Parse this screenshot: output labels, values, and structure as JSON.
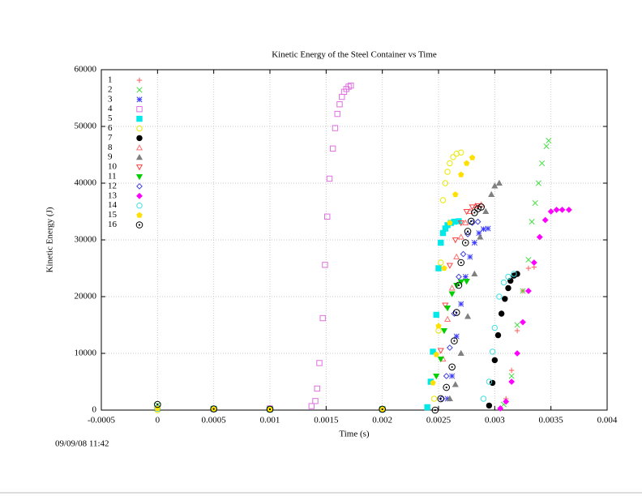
{
  "chart_data": {
    "type": "scatter",
    "title": "Kinetic Energy of the Steel Container vs Time",
    "x_label": "Time (s)",
    "y_label": "Kinetic Energy (J)",
    "timestamp": "09/09/08 11:42",
    "xlim": [
      -0.0005,
      0.004
    ],
    "xticks": [
      -0.0005,
      0,
      0.0005,
      0.001,
      0.0015,
      0.002,
      0.0025,
      0.003,
      0.0035,
      0.004
    ],
    "ylim": [
      0,
      60000
    ],
    "yticks": [
      0,
      10000,
      20000,
      30000,
      40000,
      50000,
      60000
    ],
    "grid": true,
    "legend": "upper-left",
    "series": [
      {
        "name": "1",
        "color": "#ff5a5a",
        "marker": "plus",
        "x": [
          0,
          0.0005,
          0.001,
          0.002,
          0.0031,
          0.00315,
          0.0032,
          0.00325,
          0.0033,
          0.00335
        ],
        "values": [
          300,
          200,
          150,
          150,
          2000,
          7000,
          14000,
          21000,
          25000,
          25200
        ]
      },
      {
        "name": "2",
        "color": "#3ce03c",
        "marker": "cross",
        "x": [
          0,
          0.0005,
          0.001,
          0.002,
          0.00308,
          0.00315,
          0.0032,
          0.00325,
          0.0033,
          0.00333,
          0.00336,
          0.00339,
          0.00342,
          0.00346,
          0.00348
        ],
        "values": [
          900,
          200,
          150,
          150,
          1000,
          6000,
          15000,
          21000,
          26500,
          33200,
          36500,
          40000,
          43500,
          46500,
          47500
        ]
      },
      {
        "name": "3",
        "color": "#3c3cff",
        "marker": "star",
        "x": [
          0,
          0.0005,
          0.001,
          0.002,
          0.00258,
          0.00262,
          0.00266,
          0.0027,
          0.00274,
          0.00278,
          0.00282,
          0.00286,
          0.0029,
          0.00294
        ],
        "values": [
          300,
          200,
          150,
          150,
          2000,
          6000,
          13000,
          18700,
          23500,
          27000,
          29500,
          31200,
          31900,
          32000
        ]
      },
      {
        "name": "4",
        "color": "#e070e0",
        "marker": "square",
        "x": [
          0,
          0.0005,
          0.001,
          0.00137,
          0.001404,
          0.00142,
          0.00144,
          0.00147,
          0.00149,
          0.00151,
          0.00153,
          0.00156,
          0.00158,
          0.0016,
          0.00162,
          0.00164,
          0.00166,
          0.00168,
          0.0017,
          0.00172
        ],
        "values": [
          300,
          200,
          300,
          700,
          1600,
          3800,
          8300,
          16200,
          25600,
          34100,
          40800,
          46100,
          49700,
          52200,
          53900,
          55200,
          56100,
          56600,
          57000,
          57200
        ]
      },
      {
        "name": "5",
        "color": "#00e8e8",
        "marker": "filled-square",
        "x": [
          0,
          0.0005,
          0.001,
          0.002,
          0.0024,
          0.00243,
          0.00245,
          0.00248,
          0.0025,
          0.00252,
          0.00254,
          0.00256,
          0.00258,
          0.00261,
          0.00264,
          0.00268
        ],
        "values": [
          300,
          200,
          150,
          150,
          500,
          5000,
          10300,
          16800,
          25000,
          29500,
          31200,
          32000,
          32600,
          33000,
          33200,
          33300
        ]
      },
      {
        "name": "6",
        "color": "#e8e800",
        "marker": "circle",
        "x": [
          0,
          0.0005,
          0.001,
          0.002,
          0.00246,
          0.0025,
          0.00252,
          0.00254,
          0.00256,
          0.00258,
          0.0026,
          0.00263,
          0.00266,
          0.0027
        ],
        "values": [
          0,
          200,
          150,
          150,
          2000,
          14000,
          26000,
          37000,
          40000,
          42000,
          43500,
          44600,
          45200,
          45400
        ]
      },
      {
        "name": "7",
        "color": "#000000",
        "marker": "filled-circle",
        "x": [
          0,
          0.0005,
          0.001,
          0.002,
          0.00295,
          0.00298,
          0.003,
          0.00303,
          0.00306,
          0.00309,
          0.00312,
          0.00314,
          0.00317,
          0.0032
        ],
        "values": [
          300,
          200,
          150,
          150,
          800,
          4800,
          8800,
          13200,
          17000,
          19600,
          21500,
          22800,
          23700,
          24000
        ]
      },
      {
        "name": "8",
        "color": "#ff7070",
        "marker": "triangle",
        "x": [
          0,
          0.0005,
          0.001,
          0.002,
          0.00254,
          0.00258,
          0.00262,
          0.00266,
          0.0027,
          0.00274,
          0.00278,
          0.00283,
          0.00288
        ],
        "values": [
          300,
          200,
          150,
          150,
          9000,
          16000,
          21500,
          27000,
          30500,
          33000,
          35000,
          36000,
          36200
        ]
      },
      {
        "name": "9",
        "color": "#808080",
        "marker": "filled-triangle",
        "x": [
          0,
          0.0005,
          0.001,
          0.002,
          0.0026,
          0.00265,
          0.0027,
          0.00276,
          0.00282,
          0.00287,
          0.00292,
          0.00297,
          0.003,
          0.00304
        ],
        "values": [
          300,
          200,
          150,
          150,
          2000,
          4500,
          10000,
          16500,
          24000,
          30500,
          35000,
          38000,
          39500,
          40000
        ]
      },
      {
        "name": "10",
        "color": "#ff4040",
        "marker": "triangle-down",
        "x": [
          0,
          0.0005,
          0.001,
          0.002,
          0.00252,
          0.00256,
          0.0026,
          0.00265,
          0.0027,
          0.00275,
          0.0028,
          0.00285
        ],
        "values": [
          300,
          200,
          150,
          150,
          10500,
          18500,
          25500,
          30000,
          33000,
          35000,
          35800,
          36000
        ]
      },
      {
        "name": "11",
        "color": "#00d000",
        "marker": "filled-triangle-down",
        "x": [
          0,
          0.0005,
          0.001,
          0.002,
          0.00248,
          0.00252,
          0.00255,
          0.00258,
          0.00262,
          0.00266,
          0.0027,
          0.00275
        ],
        "values": [
          300,
          200,
          150,
          150,
          6000,
          9000,
          14000,
          18000,
          20500,
          22000,
          22600,
          22700
        ]
      },
      {
        "name": "12",
        "color": "#4040e0",
        "marker": "diamond",
        "x": [
          0,
          0.0005,
          0.001,
          0.002,
          0.00253,
          0.00257,
          0.0026,
          0.00264,
          0.00268,
          0.00272,
          0.00276,
          0.0028,
          0.00285
        ],
        "values": [
          300,
          200,
          150,
          150,
          2000,
          6000,
          11000,
          17000,
          23500,
          27500,
          31000,
          33000,
          33200
        ]
      },
      {
        "name": "13",
        "color": "#ff00ff",
        "marker": "filled-diamond",
        "x": [
          0,
          0.0005,
          0.001,
          0.002,
          0.00305,
          0.0031,
          0.00315,
          0.0032,
          0.00325,
          0.0033,
          0.00335,
          0.0034,
          0.00345,
          0.0035,
          0.00355,
          0.0036,
          0.00366
        ],
        "values": [
          300,
          200,
          150,
          150,
          300,
          1500,
          5000,
          10000,
          15500,
          21000,
          26000,
          30500,
          33500,
          35000,
          35300,
          35300,
          35300
        ]
      },
      {
        "name": "14",
        "color": "#40e0e0",
        "marker": "circle",
        "x": [
          0,
          0.0005,
          0.001,
          0.002,
          0.0029,
          0.00295,
          0.00298,
          0.003,
          0.00304,
          0.00308,
          0.00312,
          0.00317
        ],
        "values": [
          300,
          200,
          150,
          150,
          2000,
          5000,
          10300,
          14500,
          20000,
          22500,
          23500,
          24000
        ]
      },
      {
        "name": "15",
        "color": "#ffe000",
        "marker": "filled-pentagon",
        "x": [
          0,
          0.0005,
          0.001,
          0.002,
          0.00245,
          0.00248,
          0.0025,
          0.00255,
          0.0026,
          0.00265,
          0.0027,
          0.00275,
          0.0028
        ],
        "values": [
          300,
          200,
          150,
          150,
          4800,
          9800,
          14800,
          25000,
          33000,
          38000,
          41500,
          43500,
          44500
        ]
      },
      {
        "name": "16",
        "color": "#000000",
        "marker": "dot-circle",
        "x": [
          0,
          0.0005,
          0.001,
          0.002,
          0.00247,
          0.00252,
          0.00257,
          0.00262,
          0.00264,
          0.00266,
          0.00268,
          0.0027,
          0.00274,
          0.00276,
          0.00279,
          0.00282,
          0.00285,
          0.00288
        ],
        "values": [
          1000,
          200,
          150,
          150,
          0,
          2000,
          4000,
          7600,
          12200,
          17200,
          22000,
          26000,
          29500,
          31500,
          33300,
          34800,
          35500,
          35800
        ]
      }
    ]
  }
}
